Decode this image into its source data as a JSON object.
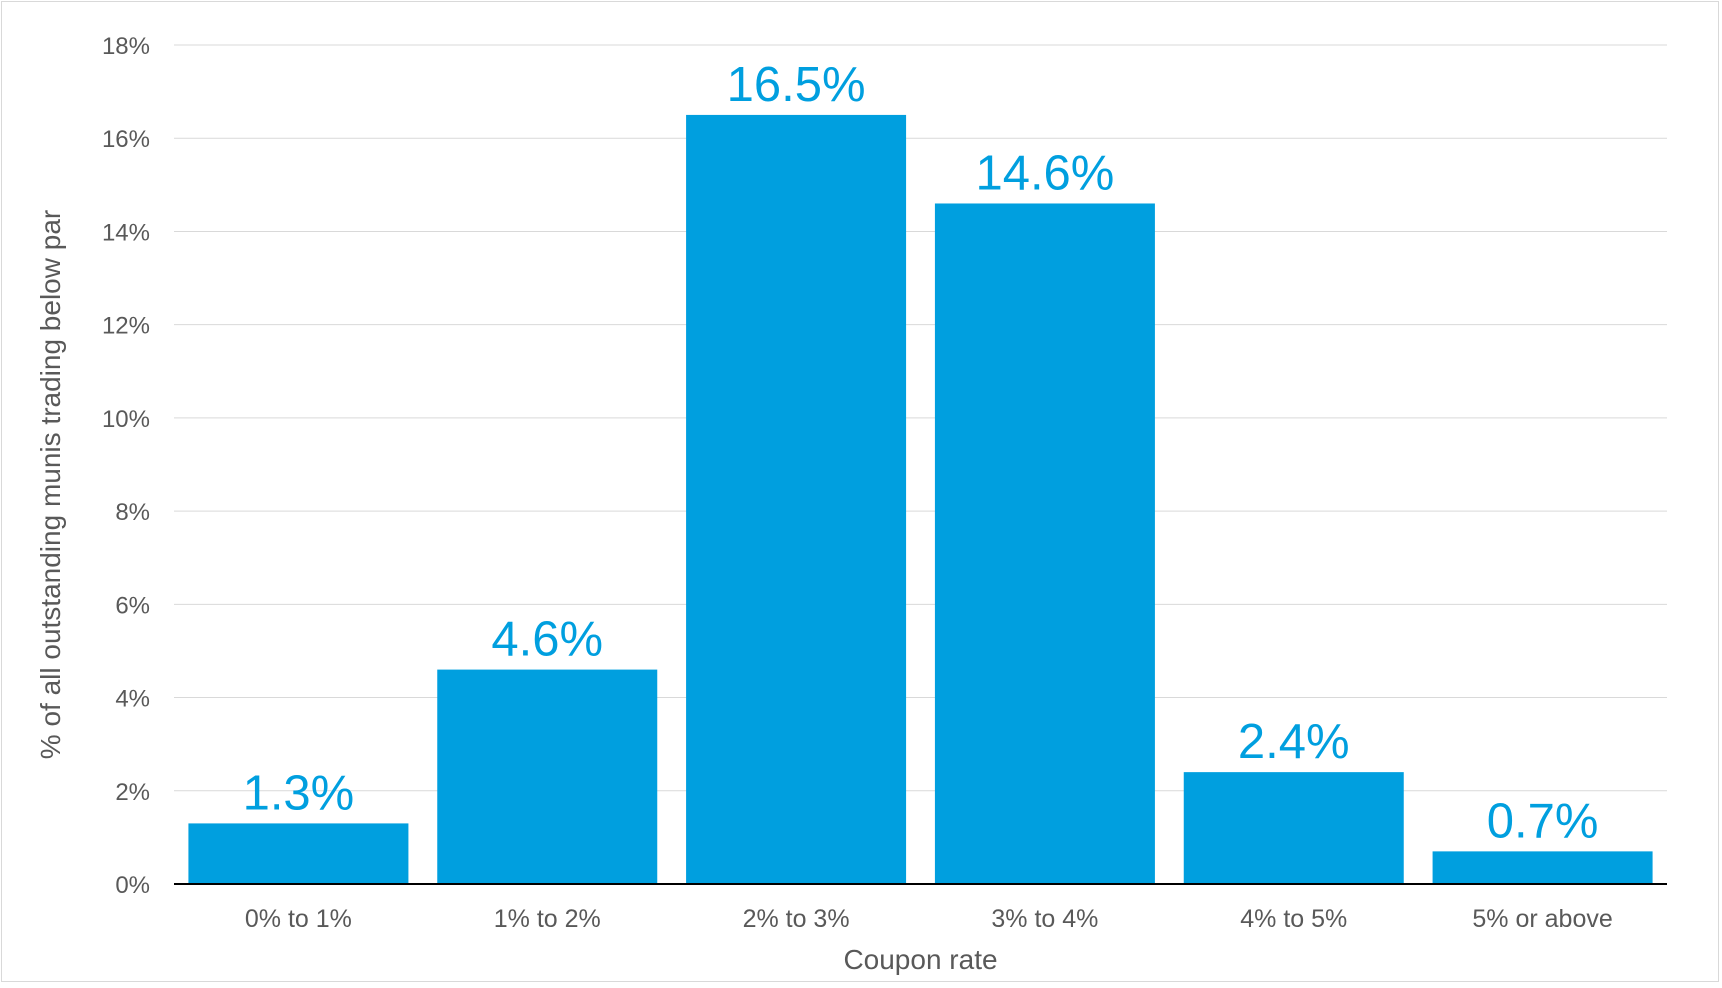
{
  "chart_data": {
    "type": "bar",
    "title": "",
    "xlabel": "Coupon rate",
    "ylabel": "% of all outstanding munis trading below par",
    "categories": [
      "0% to 1%",
      "1% to 2%",
      "2% to 3%",
      "3% to 4%",
      "4% to 5%",
      "5% or above"
    ],
    "values": [
      1.3,
      4.6,
      16.5,
      14.6,
      2.4,
      0.7
    ],
    "data_labels": [
      "1.3%",
      "4.6%",
      "16.5%",
      "14.6%",
      "2.4%",
      "0.7%"
    ],
    "ylim": [
      0,
      18
    ],
    "yticks": [
      0,
      2,
      4,
      6,
      8,
      10,
      12,
      14,
      16,
      18
    ],
    "ytick_labels": [
      "0%",
      "2%",
      "4%",
      "6%",
      "8%",
      "10%",
      "12%",
      "14%",
      "16%",
      "18%"
    ],
    "grid": true,
    "legend": "none",
    "colors": {
      "bar": "#009FDF",
      "data_label": "#009FDF",
      "grid": "#d9d9d9",
      "axis": "#000000",
      "text": "#595959"
    }
  }
}
